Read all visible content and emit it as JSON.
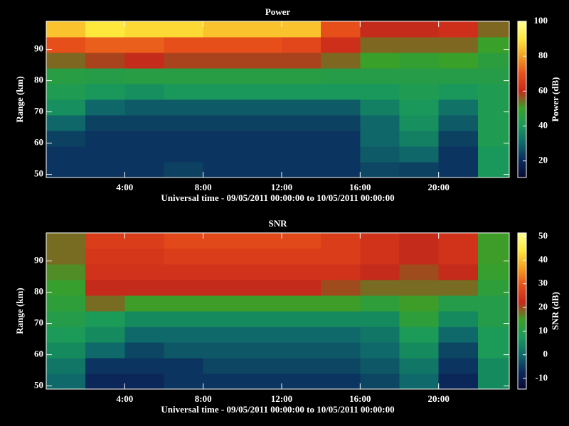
{
  "chart_data": [
    {
      "type": "heatmap",
      "title": "Power",
      "xlabel": "Universal time - 09/05/2011 00:00:00 to 10/05/2011 00:00:00",
      "ylabel": "Range (km)",
      "colorbar_label": "Power (dB)",
      "xlim": [
        0,
        23.6
      ],
      "xticks": [
        {
          "value": 4,
          "label": "4:00"
        },
        {
          "value": 8,
          "label": "8:00"
        },
        {
          "value": 12,
          "label": "12:00"
        },
        {
          "value": 16,
          "label": "16:00"
        },
        {
          "value": 20,
          "label": "20:00"
        }
      ],
      "ylim": [
        49,
        99
      ],
      "yticks": [
        50,
        60,
        70,
        80,
        90
      ],
      "clim": [
        10.5,
        100
      ],
      "cticks": [
        20,
        40,
        60,
        80,
        100
      ],
      "colormap": [
        "#08082e",
        "#0b2a5e",
        "#0f6a6a",
        "#1a9a5a",
        "#3aa028",
        "#c8281a",
        "#e8501a",
        "#f5a01e",
        "#ffe83c",
        "#ffff90"
      ],
      "x_edges": [
        0,
        2,
        4,
        6,
        8,
        10,
        12,
        14,
        16,
        18,
        20,
        22,
        23.6
      ],
      "y_edges": [
        49,
        54,
        59,
        64,
        69,
        74,
        79,
        84,
        89,
        94,
        99
      ],
      "z": [
        [
          22,
          22,
          22,
          24,
          22,
          22,
          22,
          22,
          25,
          24,
          22,
          40
        ],
        [
          22,
          22,
          22,
          22,
          22,
          22,
          22,
          22,
          28,
          30,
          22,
          40
        ],
        [
          24,
          22,
          22,
          22,
          22,
          22,
          22,
          22,
          30,
          35,
          24,
          42
        ],
        [
          30,
          24,
          24,
          24,
          24,
          24,
          24,
          24,
          30,
          38,
          28,
          42
        ],
        [
          38,
          30,
          28,
          28,
          28,
          28,
          28,
          28,
          35,
          40,
          32,
          42
        ],
        [
          42,
          40,
          38,
          40,
          40,
          40,
          40,
          40,
          40,
          42,
          40,
          42
        ],
        [
          45,
          44,
          45,
          45,
          45,
          45,
          45,
          44,
          44,
          44,
          44,
          44
        ],
        [
          55,
          58,
          60,
          58,
          58,
          58,
          58,
          55,
          50,
          48,
          50,
          46
        ],
        [
          70,
          72,
          72,
          70,
          70,
          70,
          68,
          62,
          55,
          55,
          55,
          50
        ],
        [
          85,
          90,
          88,
          88,
          85,
          85,
          85,
          70,
          60,
          60,
          62,
          55
        ]
      ]
    },
    {
      "type": "heatmap",
      "title": "SNR",
      "xlabel": "Universal time - 09/05/2011 00:00:00 to 10/05/2011 00:00:00",
      "ylabel": "Range (km)",
      "colorbar_label": "SNR (dB)",
      "xlim": [
        0,
        23.6
      ],
      "xticks": [
        {
          "value": 4,
          "label": "4:00"
        },
        {
          "value": 8,
          "label": "8:00"
        },
        {
          "value": 12,
          "label": "12:00"
        },
        {
          "value": 16,
          "label": "16:00"
        },
        {
          "value": 20,
          "label": "20:00"
        }
      ],
      "ylim": [
        49,
        99
      ],
      "yticks": [
        50,
        60,
        70,
        80,
        90
      ],
      "clim": [
        -14.5,
        51.5
      ],
      "cticks": [
        -10,
        0,
        10,
        20,
        30,
        40,
        50
      ],
      "colormap": [
        "#08082e",
        "#0b2a5e",
        "#0f6a6a",
        "#1a9a5a",
        "#3aa028",
        "#c8281a",
        "#e8501a",
        "#f5a01e",
        "#ffe83c",
        "#ffff90"
      ],
      "x_edges": [
        0,
        2,
        4,
        6,
        8,
        10,
        12,
        14,
        16,
        18,
        20,
        22,
        23.6
      ],
      "y_edges": [
        49,
        54,
        59,
        64,
        69,
        74,
        79,
        84,
        89,
        94,
        99
      ],
      "z": [
        [
          0,
          -8,
          -8,
          -6,
          -6,
          -6,
          -6,
          -6,
          -4,
          0,
          -8,
          5
        ],
        [
          2,
          -6,
          -6,
          -6,
          -4,
          -4,
          -4,
          -4,
          -2,
          2,
          -6,
          5
        ],
        [
          5,
          0,
          -4,
          -2,
          -2,
          -2,
          -2,
          -2,
          0,
          5,
          -4,
          8
        ],
        [
          8,
          5,
          0,
          0,
          0,
          0,
          0,
          0,
          2,
          8,
          0,
          8
        ],
        [
          10,
          8,
          5,
          5,
          5,
          5,
          5,
          5,
          5,
          12,
          5,
          10
        ],
        [
          12,
          18,
          15,
          15,
          15,
          15,
          15,
          15,
          12,
          15,
          10,
          10
        ],
        [
          14,
          22,
          22,
          22,
          22,
          22,
          22,
          20,
          18,
          18,
          18,
          12
        ],
        [
          16,
          24,
          24,
          24,
          24,
          24,
          24,
          24,
          22,
          20,
          22,
          14
        ],
        [
          18,
          25,
          25,
          26,
          26,
          26,
          26,
          26,
          24,
          22,
          24,
          15
        ],
        [
          18,
          26,
          26,
          28,
          28,
          28,
          28,
          26,
          24,
          22,
          24,
          15
        ]
      ]
    }
  ]
}
